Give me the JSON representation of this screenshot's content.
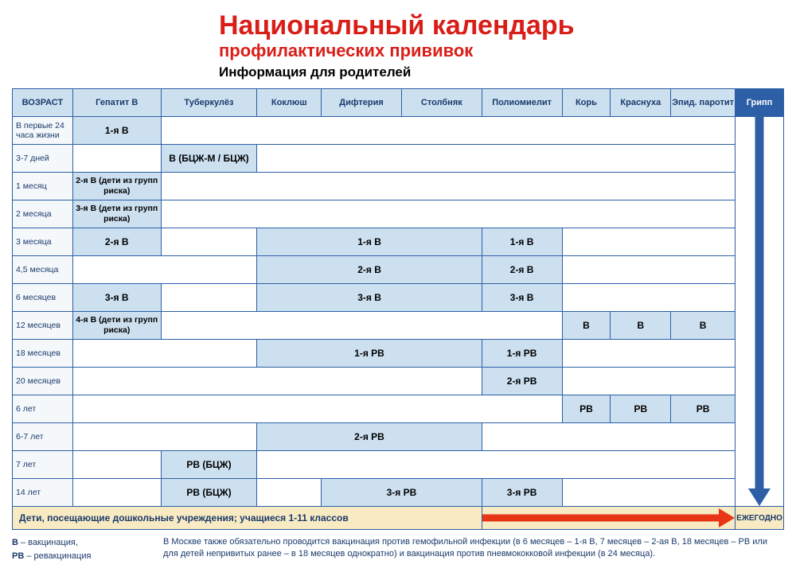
{
  "header": {
    "title": "Национальный календарь",
    "subtitle": "профилактических прививок",
    "info": "Информация для родителей"
  },
  "columns": [
    "ВОЗРАСТ",
    "Гепатит В",
    "Туберкулёз",
    "Коклюш",
    "Дифтерия",
    "Столбняк",
    "Полиомиелит",
    "Корь",
    "Краснуха",
    "Эпид. паротит",
    "Грипп"
  ],
  "rows": [
    {
      "age": "В первые 24 часа жизни",
      "cells": [
        {
          "t": "1-я В",
          "c": 1,
          "f": 1
        },
        {
          "c": 9,
          "f": 0
        }
      ]
    },
    {
      "age": "3-7 дней",
      "cells": [
        {
          "c": 1,
          "f": 0
        },
        {
          "t": "В (БЦЖ-М / БЦЖ)",
          "c": 1,
          "f": 1
        },
        {
          "c": 8,
          "f": 0
        }
      ]
    },
    {
      "age": "1 месяц",
      "cells": [
        {
          "t": "2-я В (дети из групп риска)",
          "c": 1,
          "f": 1,
          "s": 1
        },
        {
          "c": 9,
          "f": 0
        }
      ]
    },
    {
      "age": "2 месяца",
      "cells": [
        {
          "t": "3-я В (дети из групп риска)",
          "c": 1,
          "f": 1,
          "s": 1
        },
        {
          "c": 9,
          "f": 0
        }
      ]
    },
    {
      "age": "3 месяца",
      "cells": [
        {
          "t": "2-я В",
          "c": 1,
          "f": 1
        },
        {
          "c": 1,
          "f": 0
        },
        {
          "t": "1-я В",
          "c": 3,
          "f": 1
        },
        {
          "t": "1-я В",
          "c": 1,
          "f": 1
        },
        {
          "c": 4,
          "f": 0
        }
      ]
    },
    {
      "age": "4,5 месяца",
      "cells": [
        {
          "c": 2,
          "f": 0
        },
        {
          "t": "2-я В",
          "c": 3,
          "f": 1
        },
        {
          "t": "2-я В",
          "c": 1,
          "f": 1
        },
        {
          "c": 4,
          "f": 0
        }
      ]
    },
    {
      "age": "6 месяцев",
      "cells": [
        {
          "t": "3-я В",
          "c": 1,
          "f": 1
        },
        {
          "c": 1,
          "f": 0
        },
        {
          "t": "3-я В",
          "c": 3,
          "f": 1
        },
        {
          "t": "3-я В",
          "c": 1,
          "f": 1
        },
        {
          "c": 4,
          "f": 0
        }
      ]
    },
    {
      "age": "12 месяцев",
      "cells": [
        {
          "t": "4-я В (дети из групп риска)",
          "c": 1,
          "f": 1,
          "s": 1
        },
        {
          "c": 5,
          "f": 0
        },
        {
          "t": "В",
          "c": 1,
          "f": 1
        },
        {
          "t": "В",
          "c": 1,
          "f": 1
        },
        {
          "t": "В",
          "c": 1,
          "f": 1
        },
        {
          "c": 1,
          "f": 0
        }
      ]
    },
    {
      "age": "18 месяцев",
      "cells": [
        {
          "c": 2,
          "f": 0
        },
        {
          "t": "1-я РВ",
          "c": 3,
          "f": 1
        },
        {
          "t": "1-я РВ",
          "c": 1,
          "f": 1
        },
        {
          "c": 4,
          "f": 0
        }
      ]
    },
    {
      "age": "20 месяцев",
      "cells": [
        {
          "c": 5,
          "f": 0
        },
        {
          "t": "2-я РВ",
          "c": 1,
          "f": 1
        },
        {
          "c": 4,
          "f": 0
        }
      ]
    },
    {
      "age": "6 лет",
      "cells": [
        {
          "c": 6,
          "f": 0
        },
        {
          "t": "РВ",
          "c": 1,
          "f": 1
        },
        {
          "t": "РВ",
          "c": 1,
          "f": 1
        },
        {
          "t": "РВ",
          "c": 1,
          "f": 1
        },
        {
          "c": 1,
          "f": 0
        }
      ]
    },
    {
      "age": "6-7 лет",
      "cells": [
        {
          "c": 2,
          "f": 0
        },
        {
          "t": "2-я РВ",
          "c": 3,
          "f": 1
        },
        {
          "c": 5,
          "f": 0
        }
      ]
    },
    {
      "age": "7 лет",
      "cells": [
        {
          "c": 1,
          "f": 0
        },
        {
          "t": "РВ (БЦЖ)",
          "c": 1,
          "f": 1
        },
        {
          "c": 8,
          "f": 0
        }
      ]
    },
    {
      "age": "14 лет",
      "cells": [
        {
          "c": 1,
          "f": 0
        },
        {
          "t": "РВ (БЦЖ)",
          "c": 1,
          "f": 1
        },
        {
          "c": 1,
          "f": 0
        },
        {
          "t": "3-я РВ",
          "c": 2,
          "f": 1
        },
        {
          "t": "3-я РВ",
          "c": 1,
          "f": 1
        },
        {
          "c": 4,
          "f": 0
        }
      ]
    }
  ],
  "footer": {
    "text": "Дети, посещающие дошкольные учреждения; учащиеся 1-11 классов",
    "annual": "ЕЖЕГОДНО"
  },
  "legend": {
    "v_key": "В",
    "v_val": " – вакцинация,",
    "rv_key": "РВ",
    "rv_val": " – ревакцинация",
    "note": "В Москве также обязательно проводится вакцинация против гемофильной инфекции (в 6 месяцев – 1-я В, 7 месяцев – 2-ая В, 18 месяцев – РВ или для детей непривитых ранее – в 18 месяцев однократно) и вакцинация против пневмококковой инфекции (в 24 месяца)."
  },
  "style": {
    "col_widths": [
      "7.5%",
      "11%",
      "12%",
      "8%",
      "10%",
      "10%",
      "10%",
      "6%",
      "7.5%",
      "8%",
      "6%"
    ]
  }
}
